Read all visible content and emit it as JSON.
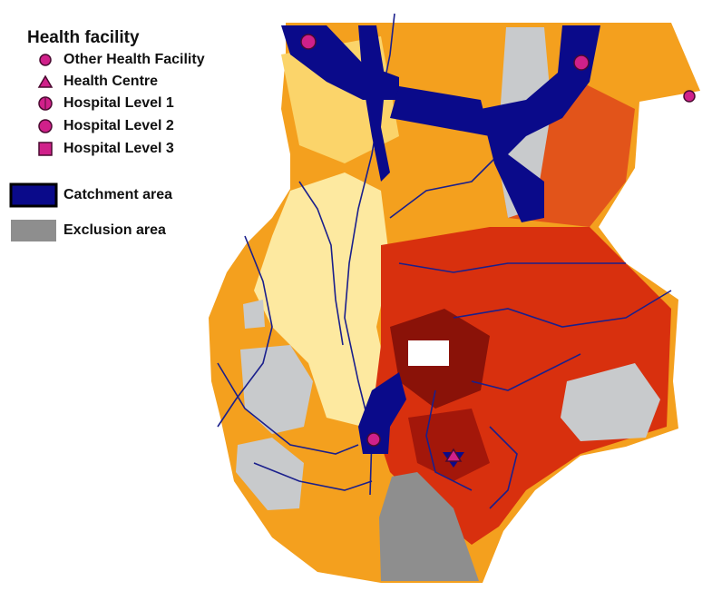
{
  "legend": {
    "title": "Health facility",
    "facilities": [
      "Other Health Facility",
      "Health Centre",
      "Hospital Level 1",
      "Hospital Level 2",
      "Hospital Level 3"
    ],
    "areas": [
      "Catchment area",
      "Exclusion area"
    ]
  }
}
